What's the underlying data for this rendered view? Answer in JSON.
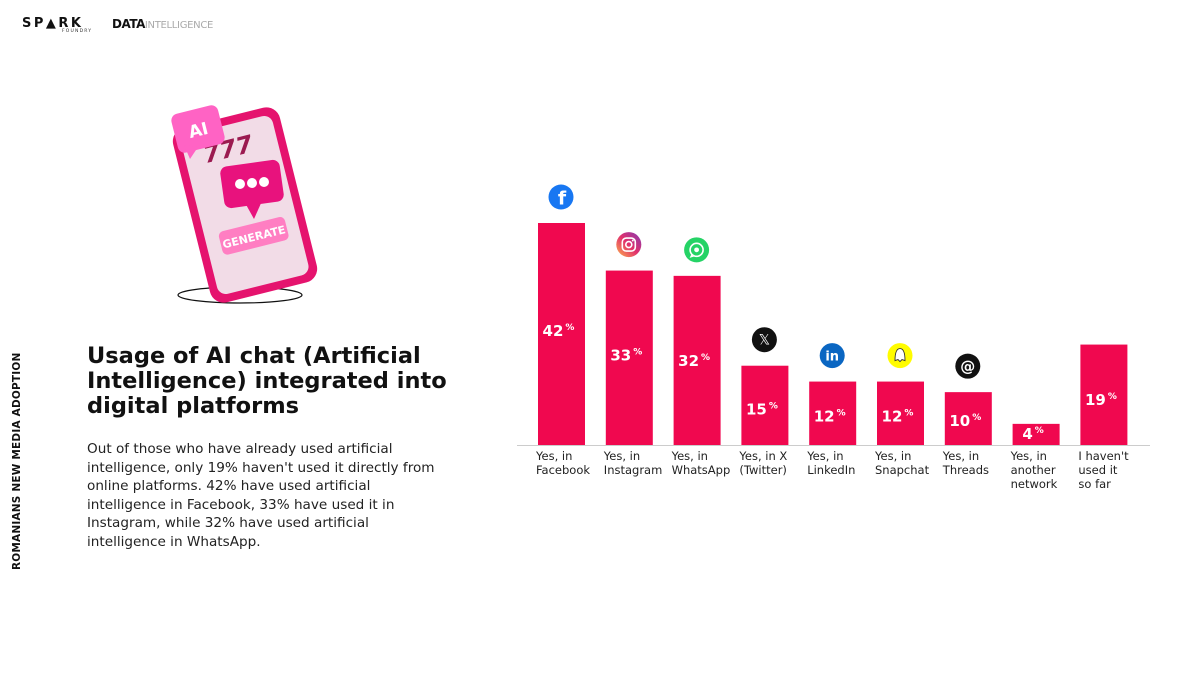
{
  "header": {
    "logo_spark": "SP▲RK",
    "logo_spark_sub": "FOUNDRY",
    "logo_data_bold": "DATA",
    "logo_data_light": "INTELLIGENCE"
  },
  "side_label": "ROMANIANS NEW MEDIA ADOPTION",
  "title": "Usage of AI chat (Artificial Intelligence) integrated into digital platforms",
  "description": "Out of those who have already used artificial intelligence, only 19% haven't used it directly from online platforms. 42% have used artificial intelligence in Facebook, 33% have used it in Instagram, while 32% have used artificial intelligence in WhatsApp.",
  "illustration": {
    "badge_text": "AI",
    "slot_text": "777",
    "button_text": "GENERATE"
  },
  "colors": {
    "bar": "#f0084f",
    "axis": "#cccccc",
    "facebook": "#1877f2",
    "whatsapp": "#25d366",
    "x": "#111111",
    "linkedin": "#0a66c2",
    "snapchat": "#fffc00",
    "threads": "#111111"
  },
  "chart_data": {
    "type": "bar",
    "categories": [
      [
        "Yes, in",
        "Facebook"
      ],
      [
        "Yes, in",
        "Instagram"
      ],
      [
        "Yes, in",
        "WhatsApp"
      ],
      [
        "Yes, in X",
        "(Twitter)"
      ],
      [
        "Yes, in",
        "LinkedIn"
      ],
      [
        "Yes, in",
        "Snapchat"
      ],
      [
        "Yes, in",
        "Threads"
      ],
      [
        "Yes, in",
        "another",
        "network"
      ],
      [
        "I haven't",
        "used it",
        "so far"
      ]
    ],
    "values": [
      42,
      33,
      32,
      15,
      12,
      12,
      10,
      4,
      19
    ],
    "value_suffix": "%",
    "icons": [
      "facebook-icon",
      "instagram-icon",
      "whatsapp-icon",
      "x-icon",
      "linkedin-icon",
      "snapchat-icon",
      "threads-icon",
      null,
      null
    ],
    "title": "",
    "xlabel": "",
    "ylabel": "",
    "ylim": [
      0,
      42
    ],
    "grid": false,
    "legend": "none"
  }
}
